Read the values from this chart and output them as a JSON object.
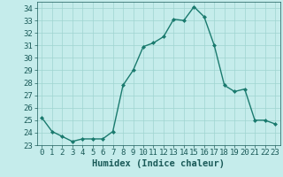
{
  "title": "",
  "xlabel": "Humidex (Indice chaleur)",
  "ylabel": "",
  "x": [
    0,
    1,
    2,
    3,
    4,
    5,
    6,
    7,
    8,
    9,
    10,
    11,
    12,
    13,
    14,
    15,
    16,
    17,
    18,
    19,
    20,
    21,
    22,
    23
  ],
  "y": [
    25.2,
    24.1,
    23.7,
    23.3,
    23.5,
    23.5,
    23.5,
    24.1,
    27.8,
    29.0,
    30.9,
    31.2,
    31.7,
    33.1,
    33.0,
    34.1,
    33.3,
    31.0,
    27.8,
    27.3,
    27.5,
    25.0,
    25.0,
    24.7
  ],
  "line_color": "#1a7a6e",
  "marker": "D",
  "marker_size": 2.0,
  "bg_color": "#c5eceb",
  "grid_color": "#9fd4d0",
  "tick_label_color": "#1a5a58",
  "xlim": [
    -0.5,
    23.5
  ],
  "ylim": [
    23,
    34.5
  ],
  "yticks": [
    23,
    24,
    25,
    26,
    27,
    28,
    29,
    30,
    31,
    32,
    33,
    34
  ],
  "xticks": [
    0,
    1,
    2,
    3,
    4,
    5,
    6,
    7,
    8,
    9,
    10,
    11,
    12,
    13,
    14,
    15,
    16,
    17,
    18,
    19,
    20,
    21,
    22,
    23
  ],
  "tick_fontsize": 6.5,
  "xlabel_fontsize": 7.5,
  "linewidth": 1.0
}
